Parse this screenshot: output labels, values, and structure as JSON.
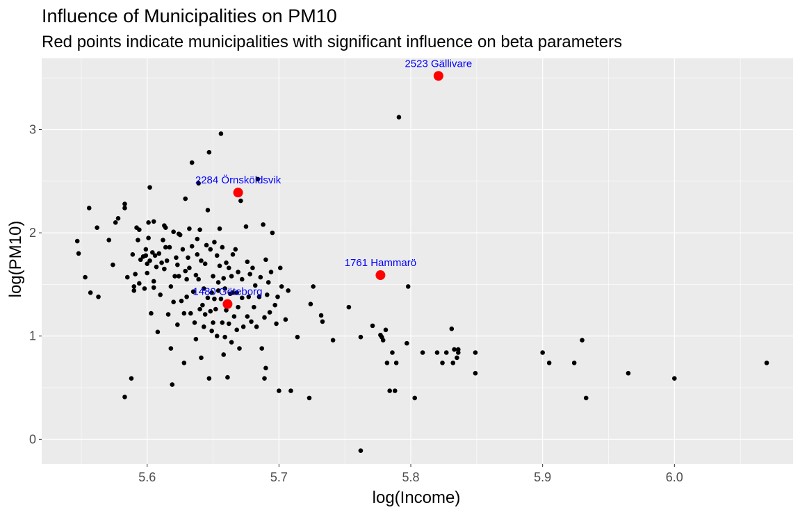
{
  "chart_data": {
    "type": "scatter",
    "title": "Influence of Municipalities on PM10",
    "subtitle": "Red points indicate municipalities with significant influence on beta parameters",
    "xlabel": "log(Income)",
    "ylabel": "log(PM10)",
    "xlim": [
      5.52,
      6.09
    ],
    "ylim": [
      -0.24,
      3.69
    ],
    "xticks": [
      "5.6",
      "5.7",
      "5.8",
      "5.9",
      "6.0"
    ],
    "yticks": [
      "0",
      "1",
      "2",
      "3"
    ],
    "grid": true,
    "colors": {
      "panel": "#ebebeb",
      "grid": "#ffffff",
      "point": "#000000",
      "influential": "#ff0000",
      "label": "#0000ff"
    },
    "influential_points": [
      {
        "label": "2523 Gällivare",
        "x": 5.821,
        "y": 3.52
      },
      {
        "label": "2284 Örnsköldsvik",
        "x": 5.669,
        "y": 2.39
      },
      {
        "label": "1761 Hammarö",
        "x": 5.777,
        "y": 1.59
      },
      {
        "label": "1480 Göteborg",
        "x": 5.661,
        "y": 1.31
      }
    ],
    "points": [
      [
        5.547,
        1.92
      ],
      [
        5.548,
        1.8
      ],
      [
        5.553,
        1.57
      ],
      [
        5.556,
        2.24
      ],
      [
        5.557,
        1.42
      ],
      [
        5.562,
        2.05
      ],
      [
        5.563,
        1.38
      ],
      [
        5.571,
        1.93
      ],
      [
        5.574,
        1.69
      ],
      [
        5.576,
        2.1
      ],
      [
        5.578,
        2.14
      ],
      [
        5.583,
        2.28
      ],
      [
        5.583,
        2.24
      ],
      [
        5.583,
        0.41
      ],
      [
        5.585,
        1.57
      ],
      [
        5.588,
        0.59
      ],
      [
        5.589,
        1.79
      ],
      [
        5.59,
        1.48
      ],
      [
        5.59,
        1.44
      ],
      [
        5.591,
        1.6
      ],
      [
        5.592,
        2.05
      ],
      [
        5.593,
        1.93
      ],
      [
        5.594,
        1.51
      ],
      [
        5.594,
        2.03
      ],
      [
        5.595,
        1.74
      ],
      [
        5.597,
        1.77
      ],
      [
        5.598,
        1.46
      ],
      [
        5.599,
        1.78
      ],
      [
        5.599,
        1.84
      ],
      [
        5.6,
        1.7
      ],
      [
        5.6,
        1.61
      ],
      [
        5.601,
        2.1
      ],
      [
        5.601,
        1.95
      ],
      [
        5.602,
        2.44
      ],
      [
        5.602,
        1.73
      ],
      [
        5.603,
        1.22
      ],
      [
        5.604,
        1.81
      ],
      [
        5.605,
        2.11
      ],
      [
        5.605,
        1.47
      ],
      [
        5.605,
        1.53
      ],
      [
        5.606,
        1.78
      ],
      [
        5.607,
        1.67
      ],
      [
        5.608,
        1.04
      ],
      [
        5.609,
        1.8
      ],
      [
        5.61,
        1.4
      ],
      [
        5.611,
        1.71
      ],
      [
        5.612,
        1.93
      ],
      [
        5.613,
        2.07
      ],
      [
        5.613,
        1.65
      ],
      [
        5.614,
        1.86
      ],
      [
        5.614,
        2.05
      ],
      [
        5.615,
        1.73
      ],
      [
        5.616,
        1.21
      ],
      [
        5.617,
        1.86
      ],
      [
        5.618,
        1.48
      ],
      [
        5.618,
        0.88
      ],
      [
        5.619,
        0.53
      ],
      [
        5.62,
        2.01
      ],
      [
        5.62,
        1.33
      ],
      [
        5.621,
        1.58
      ],
      [
        5.622,
        1.76
      ],
      [
        5.623,
        1.11
      ],
      [
        5.623,
        1.69
      ],
      [
        5.624,
        1.99
      ],
      [
        5.624,
        1.58
      ],
      [
        5.625,
        1.98
      ],
      [
        5.626,
        1.34
      ],
      [
        5.627,
        1.84
      ],
      [
        5.628,
        1.22
      ],
      [
        5.628,
        0.74
      ],
      [
        5.629,
        2.33
      ],
      [
        5.629,
        1.63
      ],
      [
        5.63,
        1.55
      ],
      [
        5.63,
        1.38
      ],
      [
        5.631,
        1.76
      ],
      [
        5.632,
        2.04
      ],
      [
        5.632,
        1.66
      ],
      [
        5.633,
        1.22
      ],
      [
        5.634,
        2.68
      ],
      [
        5.634,
        1.87
      ],
      [
        5.635,
        1.43
      ],
      [
        5.636,
        1.13
      ],
      [
        5.637,
        1.59
      ],
      [
        5.637,
        0.97
      ],
      [
        5.638,
        1.79
      ],
      [
        5.638,
        1.94
      ],
      [
        5.639,
        2.48
      ],
      [
        5.639,
        1.55
      ],
      [
        5.64,
        1.26
      ],
      [
        5.64,
        2.03
      ],
      [
        5.641,
        0.79
      ],
      [
        5.641,
        1.73
      ],
      [
        5.642,
        1.3
      ],
      [
        5.643,
        1.46
      ],
      [
        5.643,
        1.09
      ],
      [
        5.644,
        1.7
      ],
      [
        5.644,
        1.21
      ],
      [
        5.645,
        1.88
      ],
      [
        5.646,
        2.22
      ],
      [
        5.646,
        1.37
      ],
      [
        5.647,
        0.59
      ],
      [
        5.647,
        2.78
      ],
      [
        5.648,
        1.84
      ],
      [
        5.648,
        1.24
      ],
      [
        5.649,
        1.42
      ],
      [
        5.649,
        1.05
      ],
      [
        5.65,
        1.58
      ],
      [
        5.65,
        1.13
      ],
      [
        5.651,
        1.91
      ],
      [
        5.651,
        1.36
      ],
      [
        5.652,
        1.26
      ],
      [
        5.653,
        1.78
      ],
      [
        5.653,
        1.0
      ],
      [
        5.654,
        1.52
      ],
      [
        5.654,
        1.44
      ],
      [
        5.655,
        1.68
      ],
      [
        5.655,
        2.04
      ],
      [
        5.656,
        2.96
      ],
      [
        5.656,
        1.36
      ],
      [
        5.657,
        1.13
      ],
      [
        5.657,
        1.86
      ],
      [
        5.658,
        1.56
      ],
      [
        5.658,
        0.82
      ],
      [
        5.659,
        1.46
      ],
      [
        5.659,
        0.99
      ],
      [
        5.66,
        1.25
      ],
      [
        5.66,
        1.71
      ],
      [
        5.661,
        0.6
      ],
      [
        5.662,
        1.12
      ],
      [
        5.662,
        1.66
      ],
      [
        5.663,
        1.41
      ],
      [
        5.664,
        1.58
      ],
      [
        5.664,
        0.94
      ],
      [
        5.665,
        1.79
      ],
      [
        5.665,
        1.42
      ],
      [
        5.666,
        1.19
      ],
      [
        5.667,
        1.84
      ],
      [
        5.668,
        1.42
      ],
      [
        5.668,
        1.06
      ],
      [
        5.669,
        1.62
      ],
      [
        5.669,
        1.28
      ],
      [
        5.67,
        0.88
      ],
      [
        5.671,
        2.31
      ],
      [
        5.672,
        1.37
      ],
      [
        5.672,
        1.55
      ],
      [
        5.673,
        1.09
      ],
      [
        5.675,
        2.06
      ],
      [
        5.676,
        1.72
      ],
      [
        5.676,
        1.19
      ],
      [
        5.677,
        1.38
      ],
      [
        5.678,
        1.6
      ],
      [
        5.679,
        1.14
      ],
      [
        5.68,
        1.66
      ],
      [
        5.681,
        1.28
      ],
      [
        5.682,
        1.49
      ],
      [
        5.683,
        1.09
      ],
      [
        5.684,
        2.52
      ],
      [
        5.685,
        1.38
      ],
      [
        5.686,
        1.57
      ],
      [
        5.687,
        0.88
      ],
      [
        5.688,
        2.08
      ],
      [
        5.689,
        1.18
      ],
      [
        5.689,
        0.59
      ],
      [
        5.69,
        1.74
      ],
      [
        5.69,
        0.69
      ],
      [
        5.691,
        1.4
      ],
      [
        5.692,
        1.52
      ],
      [
        5.693,
        1.23
      ],
      [
        5.694,
        1.62
      ],
      [
        5.695,
        2.0
      ],
      [
        5.697,
        1.3
      ],
      [
        5.698,
        1.12
      ],
      [
        5.699,
        1.38
      ],
      [
        5.7,
        0.47
      ],
      [
        5.701,
        1.66
      ],
      [
        5.702,
        1.48
      ],
      [
        5.705,
        1.16
      ],
      [
        5.707,
        1.44
      ],
      [
        5.709,
        0.47
      ],
      [
        5.714,
        0.99
      ],
      [
        5.723,
        0.4
      ],
      [
        5.724,
        1.31
      ],
      [
        5.726,
        1.48
      ],
      [
        5.732,
        1.2
      ],
      [
        5.733,
        1.14
      ],
      [
        5.741,
        0.96
      ],
      [
        5.753,
        1.28
      ],
      [
        5.762,
        0.99
      ],
      [
        5.762,
        -0.11
      ],
      [
        5.771,
        1.1
      ],
      [
        5.777,
        1.01
      ],
      [
        5.778,
        0.99
      ],
      [
        5.779,
        0.96
      ],
      [
        5.781,
        1.06
      ],
      [
        5.782,
        0.74
      ],
      [
        5.784,
        0.47
      ],
      [
        5.786,
        0.84
      ],
      [
        5.788,
        0.47
      ],
      [
        5.789,
        0.74
      ],
      [
        5.791,
        3.12
      ],
      [
        5.797,
        0.93
      ],
      [
        5.798,
        1.48
      ],
      [
        5.803,
        0.4
      ],
      [
        5.809,
        0.84
      ],
      [
        5.82,
        0.84
      ],
      [
        5.824,
        0.74
      ],
      [
        5.827,
        0.84
      ],
      [
        5.831,
        1.07
      ],
      [
        5.832,
        0.74
      ],
      [
        5.833,
        0.87
      ],
      [
        5.835,
        0.79
      ],
      [
        5.836,
        0.87
      ],
      [
        5.836,
        0.84
      ],
      [
        5.849,
        0.84
      ],
      [
        5.849,
        0.64
      ],
      [
        5.9,
        0.84
      ],
      [
        5.905,
        0.74
      ],
      [
        5.924,
        0.74
      ],
      [
        5.93,
        0.96
      ],
      [
        5.933,
        0.4
      ],
      [
        5.965,
        0.64
      ],
      [
        6.0,
        0.59
      ],
      [
        6.07,
        0.74
      ]
    ]
  }
}
